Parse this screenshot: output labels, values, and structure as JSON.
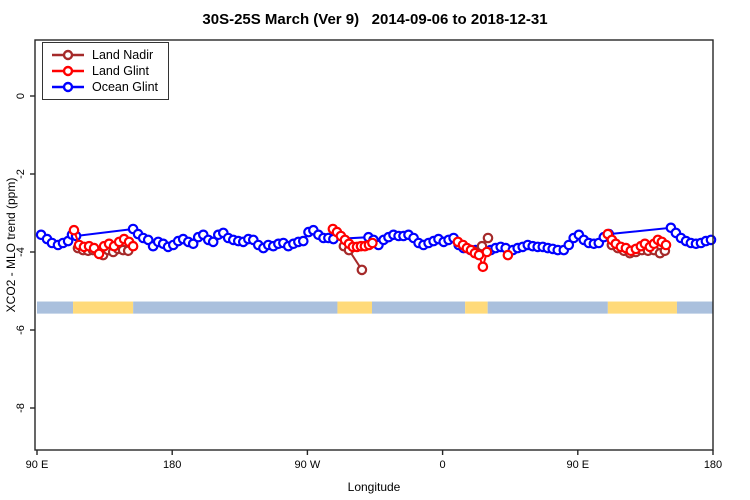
{
  "chart_data": {
    "type": "line",
    "title": "30S-25S March (Ver 9)   2014-09-06 to 2018-12-31",
    "xlabel": "Longitude",
    "ylabel": "XCO2 - MLO trend (ppm)",
    "x_axis": {
      "tick_positions_deg": [
        0,
        90,
        180,
        270,
        360,
        450
      ],
      "tick_labels": [
        "90 E",
        "180",
        "90 W",
        "0",
        "90 E",
        "180"
      ],
      "range_deg": [
        0,
        450
      ]
    },
    "y_axis": {
      "tick_values": [
        0,
        -2,
        -4,
        -6,
        -8
      ],
      "tick_labels": [
        "0",
        "-2",
        "-4",
        "-6",
        "-8"
      ],
      "range": [
        1.4,
        -9.1
      ]
    },
    "legend_position": "topleft",
    "series": [
      {
        "name": "Land Nadir",
        "color": "#A52A2A",
        "clusters": [
          [
            [
              27.3,
              -3.9
            ],
            [
              30.7,
              -3.95
            ],
            [
              34,
              -3.97
            ],
            [
              37.3,
              -3.95
            ],
            [
              40.7,
              -3.97
            ],
            [
              44,
              -4.08
            ],
            [
              47.3,
              -3.95
            ],
            [
              50.7,
              -4.0
            ],
            [
              54,
              -3.92
            ],
            [
              57.3,
              -3.95
            ],
            [
              60.7,
              -3.97
            ]
          ],
          [
            [
              204.3,
              -3.85
            ],
            [
              207.7,
              -3.95
            ],
            [
              216.3,
              -4.46
            ]
          ],
          [
            [
              292.2,
              -4.0
            ],
            [
              296.2,
              -3.85
            ],
            [
              300.2,
              -3.64
            ]
          ],
          [
            [
              382.7,
              -3.82
            ],
            [
              386.7,
              -3.9
            ],
            [
              390.7,
              -3.97
            ],
            [
              394.7,
              -4.03
            ],
            [
              398.7,
              -4.0
            ],
            [
              402.7,
              -3.95
            ],
            [
              406.7,
              -3.97
            ],
            [
              410.7,
              -3.95
            ],
            [
              414.7,
              -4.03
            ],
            [
              418,
              -3.97
            ]
          ]
        ]
      },
      {
        "name": "Land Glint",
        "color": "#FF0000",
        "clusters": [
          [
            [
              24.6,
              -3.44
            ],
            [
              28,
              -3.82
            ],
            [
              31.3,
              -3.87
            ],
            [
              34.7,
              -3.85
            ],
            [
              38,
              -3.9
            ],
            [
              41.3,
              -4.05
            ],
            [
              44.7,
              -3.85
            ],
            [
              48,
              -3.79
            ],
            [
              51.3,
              -3.85
            ],
            [
              54.7,
              -3.74
            ],
            [
              58,
              -3.67
            ],
            [
              61.3,
              -3.74
            ],
            [
              64,
              -3.85
            ]
          ],
          [
            [
              197,
              -3.41
            ],
            [
              199.7,
              -3.49
            ],
            [
              202.3,
              -3.59
            ],
            [
              205,
              -3.69
            ],
            [
              207.7,
              -3.79
            ],
            [
              210.3,
              -3.87
            ],
            [
              213,
              -3.87
            ],
            [
              215.7,
              -3.85
            ],
            [
              218.3,
              -3.85
            ],
            [
              221,
              -3.82
            ],
            [
              223.3,
              -3.77
            ]
          ],
          [
            [
              280.2,
              -3.74
            ],
            [
              283.6,
              -3.82
            ],
            [
              286.2,
              -3.9
            ],
            [
              288.9,
              -3.95
            ],
            [
              291.5,
              -4.03
            ],
            [
              294.2,
              -4.08
            ],
            [
              296.8,
              -4.38
            ],
            [
              299.5,
              -4.0
            ]
          ],
          [
            [
              313.5,
              -4.08
            ]
          ],
          [
            [
              380,
              -3.54
            ],
            [
              382.7,
              -3.69
            ],
            [
              385.3,
              -3.79
            ],
            [
              388.7,
              -3.87
            ],
            [
              392,
              -3.9
            ],
            [
              395.3,
              -3.97
            ],
            [
              398.7,
              -3.92
            ],
            [
              402,
              -3.85
            ],
            [
              404.7,
              -3.79
            ],
            [
              408,
              -3.87
            ],
            [
              410.7,
              -3.79
            ],
            [
              413.3,
              -3.69
            ],
            [
              416,
              -3.74
            ],
            [
              418.7,
              -3.82
            ]
          ]
        ]
      },
      {
        "name": "Ocean Glint",
        "color": "#0000FF",
        "clusters": [
          [
            [
              2.7,
              -3.56
            ],
            [
              6.7,
              -3.67
            ],
            [
              10,
              -3.77
            ],
            [
              14,
              -3.82
            ],
            [
              17.3,
              -3.77
            ],
            [
              20.7,
              -3.72
            ],
            [
              23.3,
              -3.56
            ],
            [
              26,
              -3.59
            ],
            [
              64,
              -3.41
            ],
            [
              67.3,
              -3.54
            ],
            [
              70.7,
              -3.64
            ],
            [
              74,
              -3.69
            ],
            [
              77.3,
              -3.85
            ],
            [
              80.7,
              -3.74
            ],
            [
              84,
              -3.79
            ],
            [
              87.3,
              -3.87
            ],
            [
              90.7,
              -3.82
            ],
            [
              94,
              -3.72
            ],
            [
              97.3,
              -3.67
            ],
            [
              100.7,
              -3.74
            ],
            [
              104,
              -3.79
            ],
            [
              107.3,
              -3.62
            ],
            [
              110.7,
              -3.56
            ],
            [
              114,
              -3.69
            ],
            [
              117.3,
              -3.74
            ],
            [
              120.7,
              -3.56
            ],
            [
              124,
              -3.51
            ],
            [
              127.3,
              -3.64
            ],
            [
              130.7,
              -3.69
            ],
            [
              134,
              -3.72
            ],
            [
              137.3,
              -3.74
            ],
            [
              140.7,
              -3.67
            ],
            [
              144,
              -3.69
            ],
            [
              147.3,
              -3.82
            ],
            [
              150.7,
              -3.9
            ],
            [
              154,
              -3.82
            ],
            [
              157.3,
              -3.85
            ],
            [
              160.7,
              -3.79
            ],
            [
              164,
              -3.77
            ],
            [
              167.3,
              -3.85
            ],
            [
              170.7,
              -3.79
            ],
            [
              174,
              -3.74
            ],
            [
              177.3,
              -3.72
            ],
            [
              180.7,
              -3.49
            ],
            [
              184,
              -3.44
            ],
            [
              187.3,
              -3.56
            ],
            [
              190.7,
              -3.64
            ],
            [
              194,
              -3.64
            ],
            [
              197.3,
              -3.67
            ],
            [
              220.7,
              -3.62
            ],
            [
              224,
              -3.69
            ],
            [
              227.3,
              -3.82
            ],
            [
              230.7,
              -3.69
            ],
            [
              234,
              -3.62
            ],
            [
              237.3,
              -3.56
            ],
            [
              240.7,
              -3.59
            ],
            [
              244,
              -3.59
            ],
            [
              247.3,
              -3.56
            ],
            [
              250.7,
              -3.64
            ],
            [
              254,
              -3.77
            ],
            [
              257.3,
              -3.82
            ],
            [
              260.7,
              -3.77
            ],
            [
              264,
              -3.72
            ],
            [
              267.3,
              -3.67
            ],
            [
              270.7,
              -3.74
            ],
            [
              274,
              -3.69
            ],
            [
              277.3,
              -3.64
            ],
            [
              280.7,
              -3.82
            ],
            [
              284,
              -3.9
            ],
            [
              288.7,
              -3.95
            ],
            [
              292,
              -3.95
            ],
            [
              295.3,
              -4.0
            ],
            [
              302,
              -3.95
            ],
            [
              305.3,
              -3.9
            ],
            [
              308.7,
              -3.87
            ],
            [
              312,
              -3.9
            ],
            [
              316.7,
              -3.95
            ],
            [
              320,
              -3.9
            ],
            [
              323.3,
              -3.87
            ],
            [
              326.7,
              -3.82
            ],
            [
              330,
              -3.85
            ],
            [
              333.3,
              -3.87
            ],
            [
              336.7,
              -3.87
            ],
            [
              340,
              -3.9
            ],
            [
              343.3,
              -3.92
            ],
            [
              346.7,
              -3.95
            ],
            [
              350.7,
              -3.95
            ],
            [
              354,
              -3.82
            ],
            [
              357.3,
              -3.64
            ],
            [
              360.7,
              -3.56
            ],
            [
              364,
              -3.69
            ],
            [
              367.3,
              -3.77
            ],
            [
              370.7,
              -3.79
            ],
            [
              374,
              -3.77
            ],
            [
              377.3,
              -3.62
            ],
            [
              380.7,
              -3.54
            ],
            [
              422,
              -3.38
            ],
            [
              425.3,
              -3.51
            ],
            [
              428.7,
              -3.64
            ],
            [
              432,
              -3.72
            ],
            [
              435.3,
              -3.77
            ],
            [
              438.7,
              -3.79
            ],
            [
              442,
              -3.77
            ],
            [
              445.3,
              -3.72
            ],
            [
              448.7,
              -3.69
            ]
          ]
        ]
      }
    ],
    "surface_band": {
      "value_top": -5.27,
      "value_bottom": -5.58,
      "ocean_color": "#AAC0DD",
      "land_color": "#FFDA7A",
      "segments": [
        {
          "from_deg": 0,
          "to_deg": 24,
          "type": "ocean"
        },
        {
          "from_deg": 24,
          "to_deg": 64,
          "type": "land"
        },
        {
          "from_deg": 64,
          "to_deg": 200,
          "type": "ocean"
        },
        {
          "from_deg": 200,
          "to_deg": 223,
          "type": "land"
        },
        {
          "from_deg": 223,
          "to_deg": 285,
          "type": "ocean"
        },
        {
          "from_deg": 285,
          "to_deg": 300,
          "type": "land"
        },
        {
          "from_deg": 300,
          "to_deg": 380,
          "type": "ocean"
        },
        {
          "from_deg": 380,
          "to_deg": 426,
          "type": "land"
        },
        {
          "from_deg": 426,
          "to_deg": 450,
          "type": "ocean"
        }
      ]
    }
  }
}
